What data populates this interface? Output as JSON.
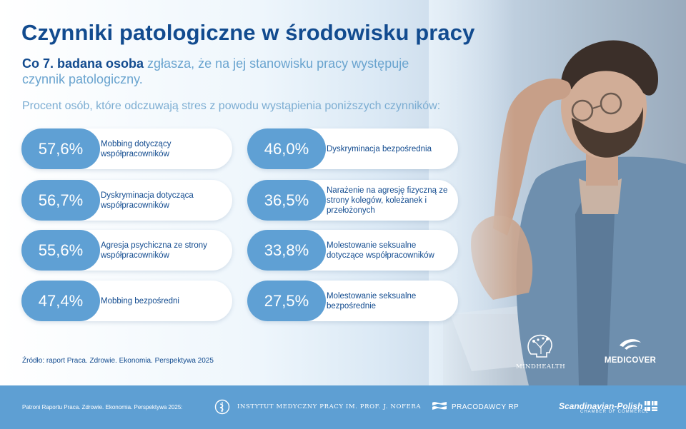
{
  "title": "Czynniki patologiczne w środowisku pracy",
  "lead": {
    "bold": "Co 7. badana osoba",
    "rest": " zgłasza, że na jej stanowisku pracy występuje czynnik patologiczny."
  },
  "intro": "Procent osób, które odczuwają stres z powodu wystąpienia poniższych czynników:",
  "factors": [
    {
      "pct": "57,6%",
      "label": "Mobbing dotyczący współpracowników"
    },
    {
      "pct": "56,7%",
      "label": "Dyskryminacja dotycząca współpracowników"
    },
    {
      "pct": "55,6%",
      "label": "Agresja psychiczna ze strony współpracowników"
    },
    {
      "pct": "47,4%",
      "label": "Mobbing bezpośredni"
    },
    {
      "pct": "46,0%",
      "label": "Dyskryminacja bezpośrednia"
    },
    {
      "pct": "36,5%",
      "label": "Narażenie na agresję fizyczną ze strony kolegów, koleżanek i przełożonych"
    },
    {
      "pct": "33,8%",
      "label": "Molestowanie seksualne dotyczące współpracowników"
    },
    {
      "pct": "27,5%",
      "label": "Molestowanie seksualne bezpośrednie"
    }
  ],
  "source": "Źródło: raport Praca. Zdrowie. Ekonomia. Perspektywa 2025",
  "logos": {
    "mindhealth": "MINDHEALTH",
    "medicover": "MEDICOVER"
  },
  "footer": {
    "patrons": "Patroni Raportu Praca. Zdrowie. Ekonomia. Perspektywa 2025:",
    "imp": "INSTYTUT MEDYCZNY PRACY IM. PROF. J. NOFERA",
    "pracodawcy": "PRACODAWCY RP",
    "scandinavian": "Scandinavian-Polish",
    "chamber": "CHAMBER OF COMMERCE"
  },
  "colors": {
    "navy": "#124b8f",
    "accent_blue": "#5fa0d4",
    "light_text": "#6aa4cf",
    "footer": "#5e9fd3"
  }
}
